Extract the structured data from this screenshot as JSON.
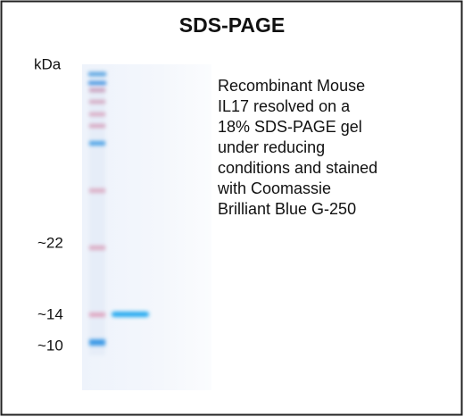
{
  "title": "SDS-PAGE",
  "axis_unit": "kDa",
  "markers": [
    "~22",
    "~14",
    "~10"
  ],
  "description": [
    "Recombinant Mouse",
    "IL17 resolved on a",
    "18% SDS-PAGE gel",
    "under reducing",
    "conditions and stained",
    "with Coomassie",
    "Brilliant Blue G-250"
  ]
}
